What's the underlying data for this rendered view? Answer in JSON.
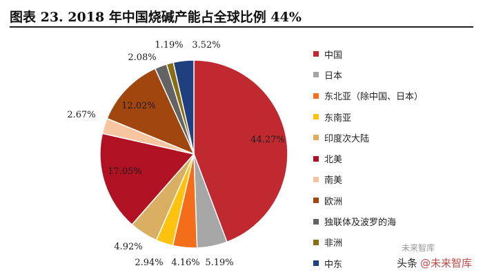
{
  "title": "图表 23. 2018 年中国烧碱产能占全球比例 44%",
  "chart_data": {
    "type": "pie",
    "slices": [
      {
        "name": "中国",
        "value": 44.27,
        "label": "44.27%",
        "color": "#c0292f"
      },
      {
        "name": "日本",
        "value": 5.19,
        "label": "5.19%",
        "color": "#a6a6a6"
      },
      {
        "name": "东北亚（除中国、日本）",
        "value": 4.16,
        "label": "4.16%",
        "color": "#f36d1b"
      },
      {
        "name": "东南亚",
        "value": 2.94,
        "label": "2.94%",
        "color": "#ffc20e"
      },
      {
        "name": "印度次大陆",
        "value": 4.92,
        "label": "4.92%",
        "color": "#d9b063"
      },
      {
        "name": "北美",
        "value": 17.05,
        "label": "17.05%",
        "color": "#b01223"
      },
      {
        "name": "南美",
        "value": 2.67,
        "label": "2.67%",
        "color": "#f7c59f"
      },
      {
        "name": "欧洲",
        "value": 12.02,
        "label": "12.02%",
        "color": "#a0460e"
      },
      {
        "name": "独联体及波罗的海",
        "value": 2.08,
        "label": "2.08%",
        "color": "#636363"
      },
      {
        "name": "非洲",
        "value": 1.19,
        "label": "1.19%",
        "color": "#8a6d10"
      },
      {
        "name": "中东",
        "value": 3.52,
        "label": "3.52%",
        "color": "#1f3f7f"
      }
    ]
  },
  "watermark": {
    "prefix": "头条",
    "brand": "@未来智库",
    "logo": "未来智库"
  }
}
